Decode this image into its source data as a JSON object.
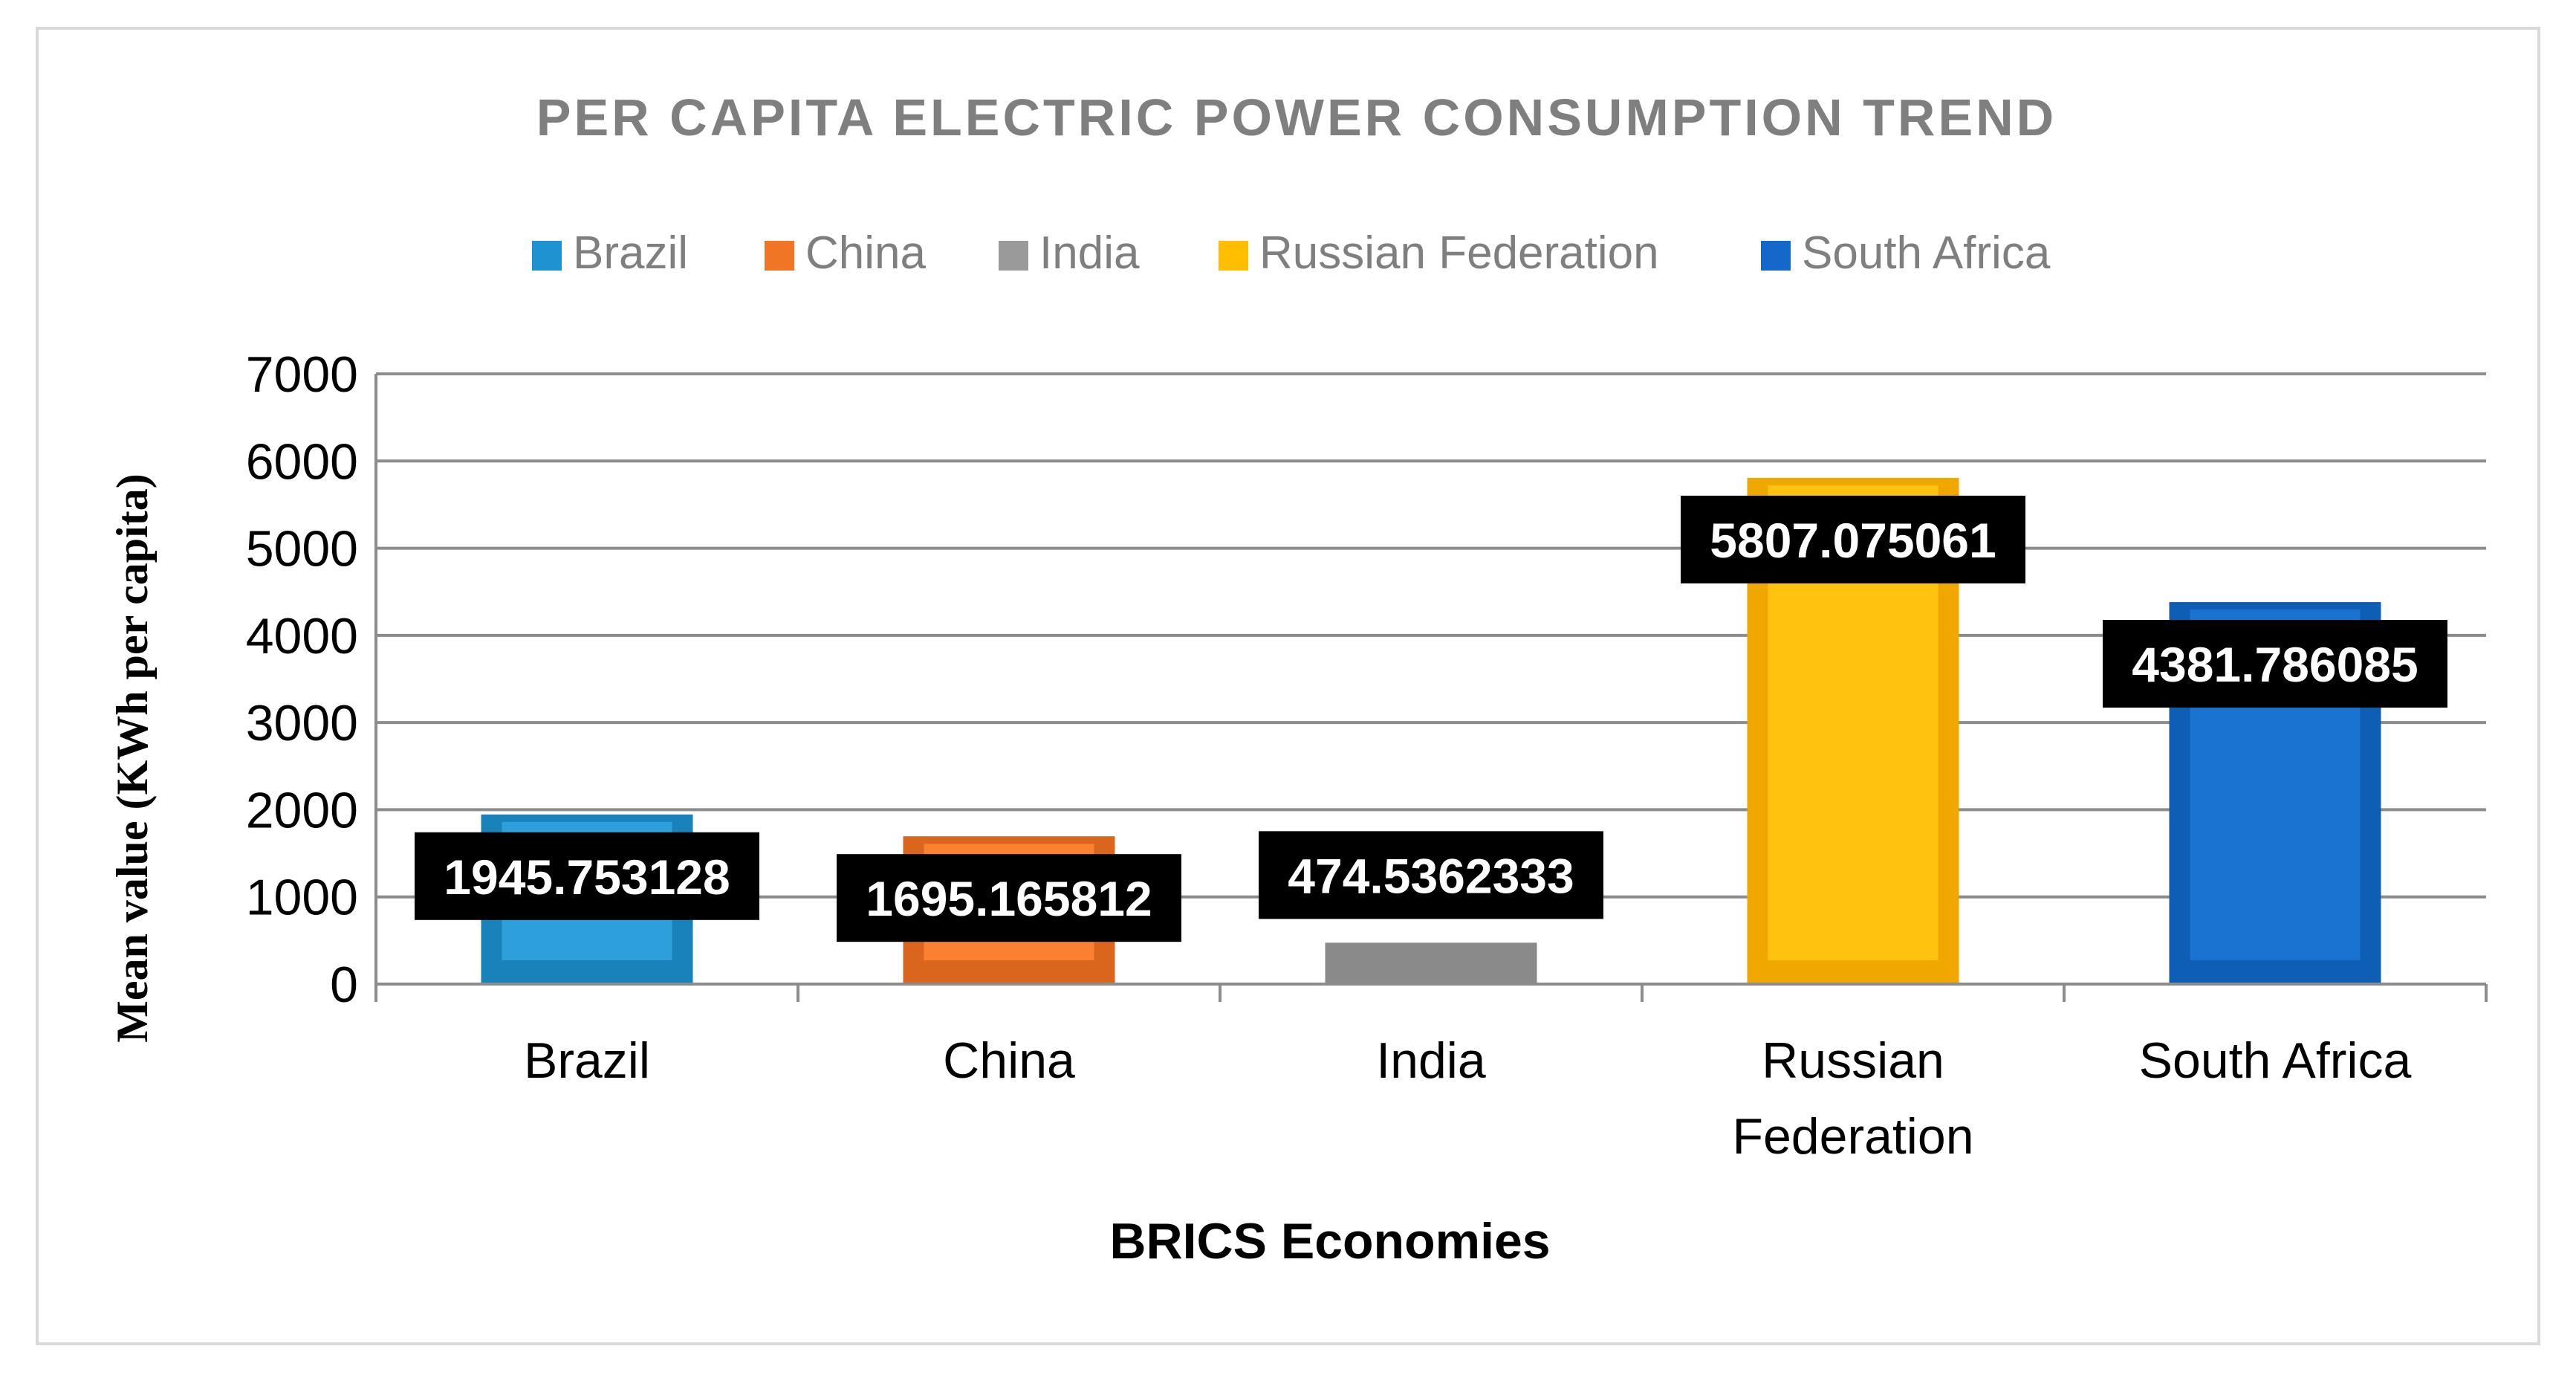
{
  "chart_data": {
    "type": "bar",
    "title": "PER CAPITA ELECTRIC POWER CONSUMPTION TREND",
    "xlabel": "BRICS Economies",
    "ylabel": "Mean value (KWh per capita)",
    "ylim": [
      0,
      7000
    ],
    "yticks": [
      "0",
      "1000",
      "2000",
      "3000",
      "4000",
      "5000",
      "6000",
      "7000"
    ],
    "grid": true,
    "legend_position": "top",
    "categories": [
      "Brazil",
      "China",
      "India",
      "Russian Federation",
      "South Africa"
    ],
    "category_lines": [
      [
        "Brazil"
      ],
      [
        "China"
      ],
      [
        "India"
      ],
      [
        "Russian",
        "Federation"
      ],
      [
        "South Africa"
      ]
    ],
    "values": [
      1945.753128,
      1695.165812,
      474.5362333,
      5807.075061,
      4381.786085
    ],
    "data_labels": [
      "1945.753128",
      "1695.165812",
      "474.5362333",
      "5807.075061",
      "4381.786085"
    ],
    "legend": [
      "Brazil",
      "China",
      "India",
      "Russian Federation",
      "South Africa"
    ],
    "colors": [
      "#1f93d1",
      "#f07524",
      "#9a9a9a",
      "#ffbf00",
      "#1368c9"
    ],
    "inner_colors": [
      "#2da0dc",
      "#fb8030",
      "#a8a8a8",
      "#ffc20e",
      "#1a73d1"
    ],
    "edge_colors": [
      "#1a82bb",
      "#d9661c",
      "#8a8a8a",
      "#f0a800",
      "#0f5eb5"
    ]
  }
}
